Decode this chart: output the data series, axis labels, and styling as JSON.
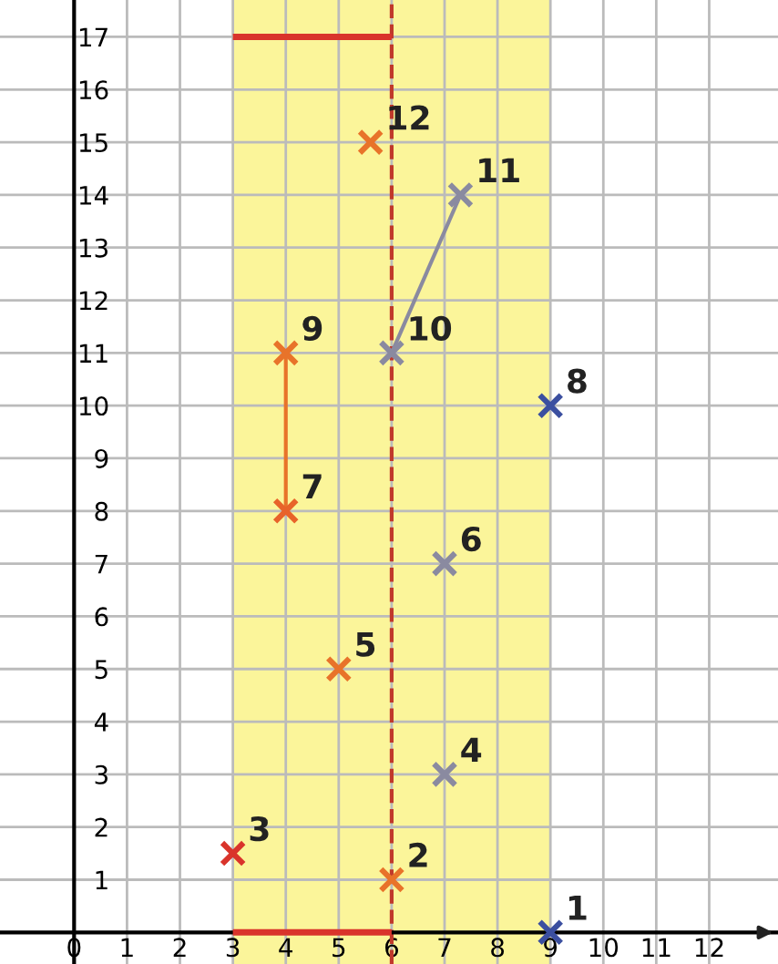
{
  "chart_data": {
    "type": "scatter",
    "xlim": [
      -1.4,
      13.3
    ],
    "ylim": [
      -0.6,
      17.7
    ],
    "xticks": [
      0,
      1,
      2,
      3,
      4,
      5,
      6,
      7,
      8,
      9,
      10,
      11,
      12
    ],
    "yticks": [
      1,
      2,
      3,
      4,
      5,
      6,
      7,
      8,
      9,
      10,
      11,
      12,
      13,
      14,
      15,
      16,
      17
    ],
    "grid": true,
    "marker": "cross",
    "series": [
      {
        "type": "line",
        "color": "#d9342b",
        "x": [
          3,
          6
        ],
        "values": [
          17,
          17
        ],
        "marker": "none"
      },
      {
        "type": "line",
        "color": "#d9342b",
        "x": [
          3,
          6
        ],
        "values": [
          0,
          0
        ],
        "marker": "none"
      },
      {
        "type": "line",
        "color": "#e8732a",
        "x": [
          4,
          4
        ],
        "values": [
          8,
          11
        ],
        "marker": "none"
      },
      {
        "type": "line",
        "color": "#8a8aa0",
        "x": [
          6,
          7.3
        ],
        "values": [
          11,
          14
        ],
        "marker": "none"
      },
      {
        "x": [
          9,
          6,
          3,
          7,
          5,
          7,
          4,
          9,
          4,
          6,
          7.3,
          5.6
        ],
        "values": [
          0,
          1,
          1.5,
          3,
          5,
          7,
          8,
          10,
          11,
          11,
          14,
          15
        ],
        "colors": [
          "#3b4fa0",
          "#e8732a",
          "#d9342b",
          "#8a8aa0",
          "#e8732a",
          "#8a8aa0",
          "#e8632a",
          "#3b4fa0",
          "#e8732a",
          "#8a8aa0",
          "#8a8aa0",
          "#e8732a"
        ]
      }
    ],
    "bands": [
      {
        "axis": "x",
        "from": 3,
        "to": 9,
        "color": "#fbf59a"
      }
    ],
    "ref_lines": [
      {
        "axis": "x",
        "value": 6,
        "color": "#c0392b",
        "line_style": "dashed"
      }
    ],
    "annotations": [
      {
        "text": "1",
        "x": 9,
        "y": 0
      },
      {
        "text": "2",
        "x": 6,
        "y": 1
      },
      {
        "text": "3",
        "x": 3,
        "y": 1.5
      },
      {
        "text": "4",
        "x": 7,
        "y": 3
      },
      {
        "text": "5",
        "x": 5,
        "y": 5
      },
      {
        "text": "6",
        "x": 7,
        "y": 7
      },
      {
        "text": "7",
        "x": 4,
        "y": 8
      },
      {
        "text": "8",
        "x": 9,
        "y": 10
      },
      {
        "text": "9",
        "x": 4,
        "y": 11
      },
      {
        "text": "10",
        "x": 6,
        "y": 11
      },
      {
        "text": "11",
        "x": 7.3,
        "y": 14
      },
      {
        "text": "12",
        "x": 5.6,
        "y": 15
      }
    ]
  }
}
